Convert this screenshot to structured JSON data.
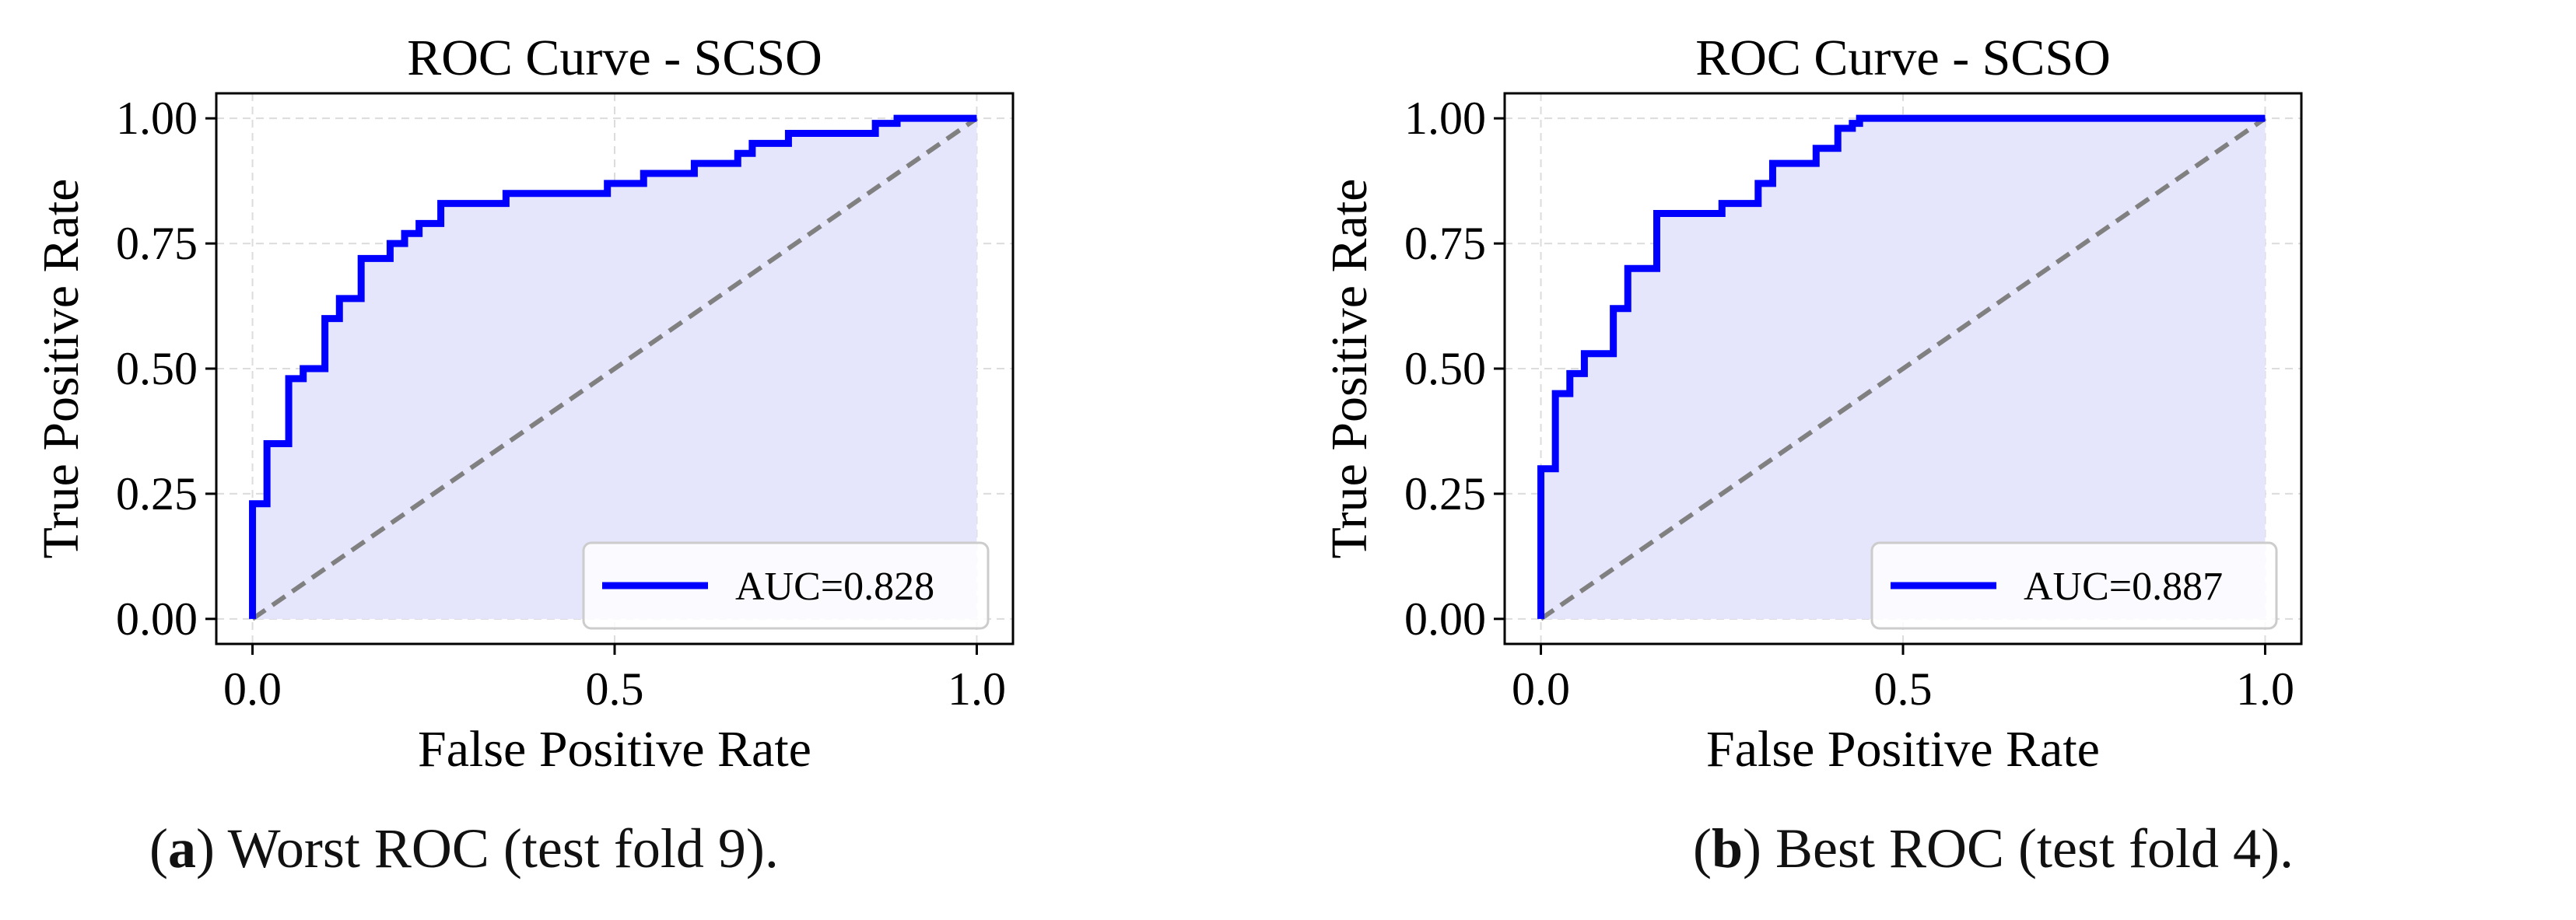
{
  "chart_data": [
    {
      "type": "line",
      "title": "ROC Curve - SCSO",
      "xlabel": "False Positive Rate",
      "ylabel": "True Positive Rate",
      "xlim": [
        -0.05,
        1.05
      ],
      "ylim": [
        -0.05,
        1.05
      ],
      "xticks": [
        "0.0",
        "0.5",
        "1.0"
      ],
      "yticks": [
        "0.00",
        "0.25",
        "0.50",
        "0.75",
        "1.00"
      ],
      "grid": true,
      "legend_position": "lower right",
      "series": [
        {
          "name": "AUC=0.828",
          "color": "#0000ff",
          "fill": "#e5e5fb",
          "x": [
            0.0,
            0.0,
            0.02,
            0.02,
            0.05,
            0.05,
            0.07,
            0.07,
            0.1,
            0.1,
            0.12,
            0.12,
            0.15,
            0.15,
            0.19,
            0.19,
            0.21,
            0.21,
            0.23,
            0.23,
            0.26,
            0.26,
            0.35,
            0.35,
            0.49,
            0.49,
            0.54,
            0.54,
            0.61,
            0.61,
            0.67,
            0.67,
            0.69,
            0.69,
            0.74,
            0.74,
            0.86,
            0.86,
            0.89,
            0.89,
            1.0
          ],
          "y": [
            0.0,
            0.23,
            0.23,
            0.35,
            0.35,
            0.48,
            0.48,
            0.5,
            0.5,
            0.6,
            0.6,
            0.64,
            0.64,
            0.72,
            0.72,
            0.75,
            0.75,
            0.77,
            0.77,
            0.79,
            0.79,
            0.83,
            0.83,
            0.85,
            0.85,
            0.87,
            0.87,
            0.89,
            0.89,
            0.91,
            0.91,
            0.93,
            0.93,
            0.95,
            0.95,
            0.97,
            0.97,
            0.99,
            0.99,
            1.0,
            1.0
          ]
        },
        {
          "name": "",
          "color": "#808080",
          "style": "dashed",
          "x": [
            0,
            1
          ],
          "y": [
            0,
            1
          ]
        }
      ]
    },
    {
      "type": "line",
      "title": "ROC Curve - SCSO",
      "xlabel": "False Positive Rate",
      "ylabel": "True Positive Rate",
      "xlim": [
        -0.05,
        1.05
      ],
      "ylim": [
        -0.05,
        1.05
      ],
      "xticks": [
        "0.0",
        "0.5",
        "1.0"
      ],
      "yticks": [
        "0.00",
        "0.25",
        "0.50",
        "0.75",
        "1.00"
      ],
      "grid": true,
      "legend_position": "lower right",
      "series": [
        {
          "name": "AUC=0.887",
          "color": "#0000ff",
          "fill": "#e5e5fb",
          "x": [
            0.0,
            0.0,
            0.02,
            0.02,
            0.04,
            0.04,
            0.06,
            0.06,
            0.1,
            0.1,
            0.12,
            0.12,
            0.16,
            0.16,
            0.25,
            0.25,
            0.3,
            0.3,
            0.32,
            0.32,
            0.38,
            0.38,
            0.41,
            0.41,
            0.43,
            0.43,
            0.44,
            0.44,
            1.0
          ],
          "y": [
            0.0,
            0.3,
            0.3,
            0.45,
            0.45,
            0.49,
            0.49,
            0.53,
            0.53,
            0.62,
            0.62,
            0.7,
            0.7,
            0.81,
            0.81,
            0.83,
            0.83,
            0.87,
            0.87,
            0.91,
            0.91,
            0.94,
            0.94,
            0.98,
            0.98,
            0.99,
            0.99,
            1.0,
            1.0
          ]
        },
        {
          "name": "",
          "color": "#808080",
          "style": "dashed",
          "x": [
            0,
            1
          ],
          "y": [
            0,
            1
          ]
        }
      ]
    }
  ],
  "captions": [
    {
      "letter": "a",
      "text": ") Worst ROC (test fold 9)."
    },
    {
      "letter": "b",
      "text": ") Best ROC (test fold 4)."
    }
  ]
}
